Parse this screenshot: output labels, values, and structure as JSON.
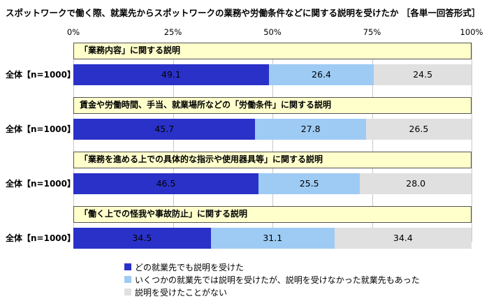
{
  "title": "スポットワークで働く際、就業先からスポットワークの業務や労働条件などに関する説明を受けたか ［各単一回答形式］",
  "axis_ticks": [
    "0%",
    "25%",
    "50%",
    "75%",
    "100%"
  ],
  "row_label": "全体【n=1000】",
  "colors": {
    "received_all": "#2a31c8",
    "received_some": "#9dcbf4",
    "not_received": "#e0e0e0",
    "header_bg": "#ffffcc"
  },
  "groups": [
    {
      "header": "「業務内容」に関する説明",
      "values": [
        "49.1",
        "26.4",
        "24.5"
      ]
    },
    {
      "header": "賃金や労働時間、手当、就業場所などの「労働条件」に関する説明",
      "values": [
        "45.7",
        "27.8",
        "26.5"
      ]
    },
    {
      "header": "「業務を進める上での具体的な指示や使用器具等」に関する説明",
      "values": [
        "46.5",
        "25.5",
        "28.0"
      ]
    },
    {
      "header": "「働く上での怪我や事故防止」に関する説明",
      "values": [
        "34.5",
        "31.1",
        "34.4"
      ]
    }
  ],
  "legend": [
    {
      "label": "どの就業先でも説明を受けた"
    },
    {
      "label": "いくつかの就業先では説明を受けたが、説明を受けなかった就業先もあった"
    },
    {
      "label": "説明を受けたことがない"
    }
  ],
  "chart_data": {
    "type": "bar",
    "orientation": "horizontal_stacked",
    "title": "スポットワークで働く際、就業先からスポットワークの業務や労働条件などに関する説明を受けたか ［各単一回答形式］",
    "group_label": "全体【n=1000】",
    "categories": [
      "「業務内容」に関する説明",
      "賃金や労働時間、手当、就業場所などの「労働条件」に関する説明",
      "「業務を進める上での具体的な指示や使用器具等」に関する説明",
      "「働く上での怪我や事故防止」に関する説明"
    ],
    "series": [
      {
        "name": "どの就業先でも説明を受けた",
        "color": "#2a31c8",
        "values": [
          49.1,
          45.7,
          46.5,
          34.5
        ]
      },
      {
        "name": "いくつかの就業先では説明を受けたが、説明を受けなかった就業先もあった",
        "color": "#9dcbf4",
        "values": [
          26.4,
          27.8,
          25.5,
          31.1
        ]
      },
      {
        "name": "説明を受けたことがない",
        "color": "#e0e0e0",
        "values": [
          24.5,
          26.5,
          28.0,
          34.4
        ]
      }
    ],
    "xlim": [
      0,
      100
    ],
    "x_ticks": [
      "0%",
      "25%",
      "50%",
      "75%",
      "100%"
    ],
    "grid": true,
    "legend_position": "bottom"
  }
}
